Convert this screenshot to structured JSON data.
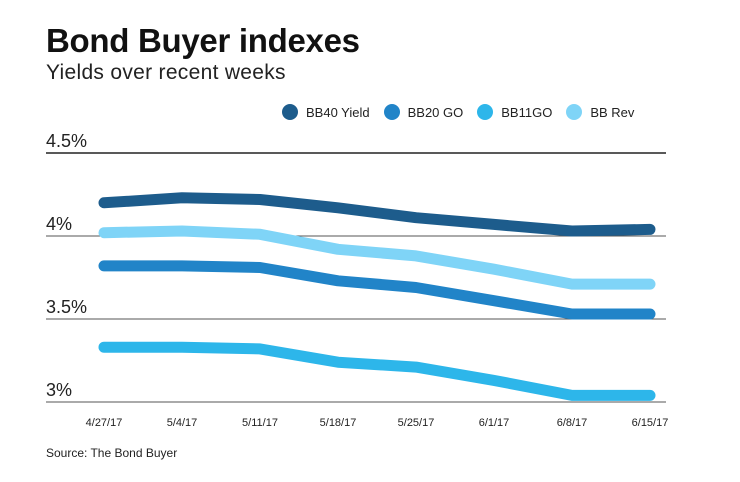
{
  "header": {
    "title": "Bond Buyer indexes",
    "subtitle": "Yields over recent weeks"
  },
  "source": "Source: The Bond Buyer",
  "chart_data": {
    "type": "line",
    "categories": [
      "4/27/17",
      "5/4/17",
      "5/11/17",
      "5/18/17",
      "5/25/17",
      "6/1/17",
      "6/8/17",
      "6/15/17"
    ],
    "y_ticks": [
      {
        "value": 4.5,
        "label": "4.5%"
      },
      {
        "value": 4.0,
        "label": "4%"
      },
      {
        "value": 3.5,
        "label": "3.5%"
      },
      {
        "value": 3.0,
        "label": "3%"
      }
    ],
    "ylim": [
      3.0,
      4.5
    ],
    "grid": true,
    "legend_position": "top-right",
    "series": [
      {
        "name": "BB40 Yield",
        "color": "#1d5c8c",
        "values": [
          4.2,
          4.23,
          4.22,
          4.17,
          4.11,
          4.07,
          4.03,
          4.04
        ]
      },
      {
        "name": "BB20 GO",
        "color": "#2184c8",
        "values": [
          3.82,
          3.82,
          3.81,
          3.73,
          3.69,
          3.61,
          3.53,
          3.53
        ]
      },
      {
        "name": "BB11GO",
        "color": "#2db6ea",
        "values": [
          3.33,
          3.33,
          3.32,
          3.24,
          3.21,
          3.13,
          3.04,
          3.04
        ]
      },
      {
        "name": "BB Rev",
        "color": "#7fd4f7",
        "values": [
          4.02,
          4.03,
          4.01,
          3.92,
          3.88,
          3.8,
          3.71,
          3.71
        ]
      }
    ]
  }
}
